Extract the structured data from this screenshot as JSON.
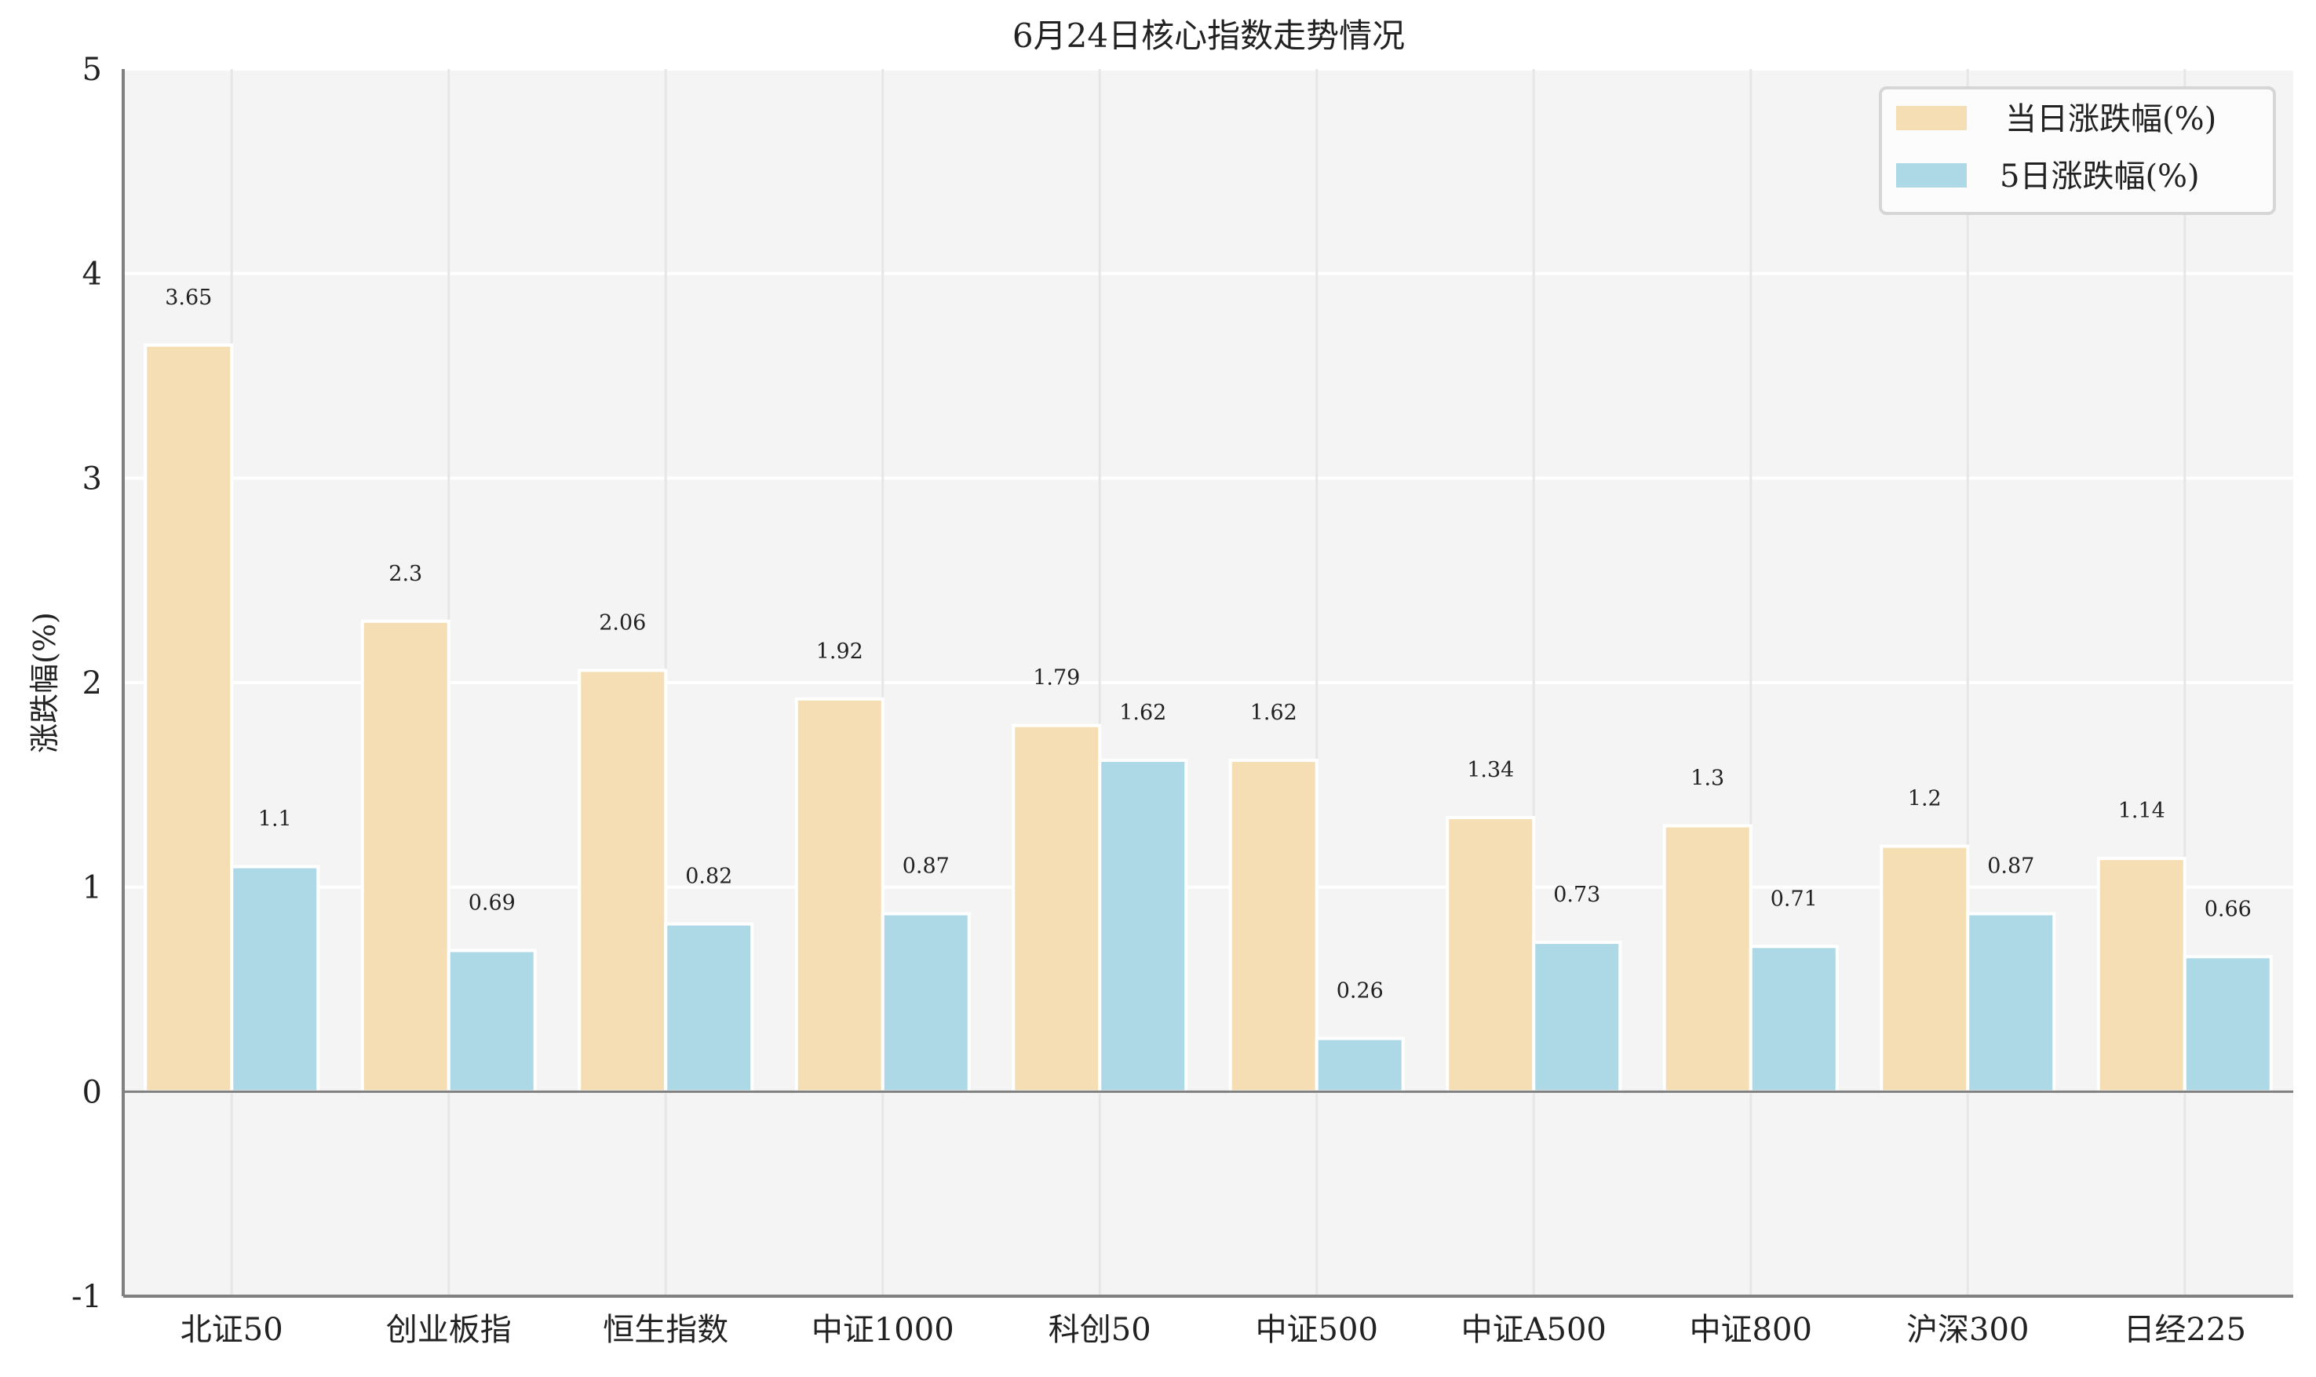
{
  "chart_data": {
    "type": "bar",
    "title": "6月24日核心指数走势情况",
    "xlabel": "",
    "ylabel": "涨跌幅(%)",
    "ylim": [
      -1,
      5
    ],
    "yticks": [
      -1,
      0,
      1,
      2,
      3,
      4,
      5
    ],
    "grid": true,
    "legend_position": "upper right",
    "categories": [
      "北证50",
      "创业板指",
      "恒生指数",
      "中证1000",
      "科创50",
      "中证500",
      "中证A500",
      "中证800",
      "沪深300",
      "日经225"
    ],
    "series": [
      {
        "name": "当日涨跌幅(%)",
        "color": "#f5deb3",
        "values": [
          3.65,
          2.3,
          2.06,
          1.92,
          1.79,
          1.62,
          1.34,
          1.3,
          1.2,
          1.14
        ]
      },
      {
        "name": "5日涨跌幅(%)",
        "color": "#add8e6",
        "values": [
          1.1,
          0.69,
          0.82,
          0.87,
          1.62,
          0.26,
          0.73,
          0.71,
          0.87,
          0.66
        ]
      }
    ]
  },
  "colors": {
    "plot_background": "#f4f4f4",
    "gridline": "#ffffff",
    "axis": "#808080",
    "bar_edge": "#ffffff"
  }
}
